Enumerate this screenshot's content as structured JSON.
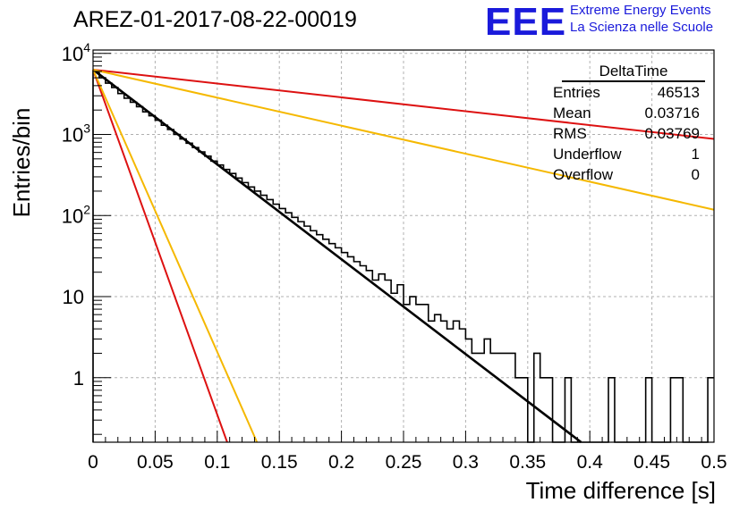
{
  "header": {
    "title": "AREZ-01-2017-08-22-00019"
  },
  "logo": {
    "mark": "EEE",
    "line1": "Extreme Energy Events",
    "line2": "La Scienza nelle Scuole"
  },
  "stats_box": {
    "name": "DeltaTime",
    "rows": [
      {
        "label": "Entries",
        "value": "46513"
      },
      {
        "label": "Mean",
        "value": "0.03716"
      },
      {
        "label": "RMS",
        "value": "0.03769"
      },
      {
        "label": "Underflow",
        "value": "1"
      },
      {
        "label": "Overflow",
        "value": "0"
      }
    ]
  },
  "chart_data": {
    "type": "histogram",
    "xlabel": "Time difference [s]",
    "ylabel": "Entries/bin",
    "xlim": [
      0,
      0.5
    ],
    "ylim": [
      0.16,
      11000
    ],
    "yscale": "log",
    "grid": true,
    "x_ticks": [
      "0",
      "0.05",
      "0.1",
      "0.15",
      "0.2",
      "0.25",
      "0.3",
      "0.35",
      "0.4",
      "0.45",
      "0.5"
    ],
    "y_ticks": [
      {
        "value": 1,
        "label": "1"
      },
      {
        "value": 10,
        "label": "10"
      },
      {
        "value": 100,
        "label": "10",
        "exp": "2"
      },
      {
        "value": 1000,
        "label": "10",
        "exp": "3"
      },
      {
        "value": 10000,
        "label": "10",
        "exp": "4"
      }
    ],
    "histogram": {
      "bin_width": 0.005,
      "counts": [
        6000,
        5000,
        4300,
        3800,
        3200,
        2800,
        2500,
        2200,
        1900,
        1700,
        1500,
        1300,
        1150,
        1000,
        880,
        780,
        690,
        610,
        540,
        470,
        420,
        370,
        330,
        290,
        255,
        225,
        200,
        178,
        157,
        138,
        122,
        108,
        95,
        84,
        74,
        65,
        58,
        51,
        45,
        40,
        35,
        31,
        27,
        24,
        21,
        16,
        19,
        16,
        11,
        14,
        8,
        10,
        8,
        8,
        5,
        6,
        5,
        4,
        5,
        4,
        3,
        2,
        2,
        3,
        2,
        2,
        2,
        2,
        1,
        1,
        0,
        2,
        1,
        1,
        0,
        0,
        1,
        0,
        0,
        0,
        0,
        0,
        0,
        1,
        0,
        0,
        0,
        0,
        0,
        1,
        0,
        0,
        0,
        1,
        1,
        0,
        0,
        0,
        0,
        1
      ]
    },
    "lines": [
      {
        "color": "#000000",
        "width": 2.6,
        "points": [
          [
            0,
            6300
          ],
          [
            0.393,
            0.16
          ]
        ]
      },
      {
        "color": "#dd1111",
        "width": 2,
        "points": [
          [
            0,
            6300
          ],
          [
            0.5,
            880
          ]
        ]
      },
      {
        "color": "#f5b800",
        "width": 2,
        "points": [
          [
            0,
            6300
          ],
          [
            0.5,
            118
          ]
        ]
      },
      {
        "color": "#dd1111",
        "width": 2,
        "points": [
          [
            0,
            6300
          ],
          [
            0.108,
            0.16
          ]
        ]
      },
      {
        "color": "#f5b800",
        "width": 2,
        "points": [
          [
            0,
            6300
          ],
          [
            0.132,
            0.16
          ]
        ]
      }
    ]
  }
}
